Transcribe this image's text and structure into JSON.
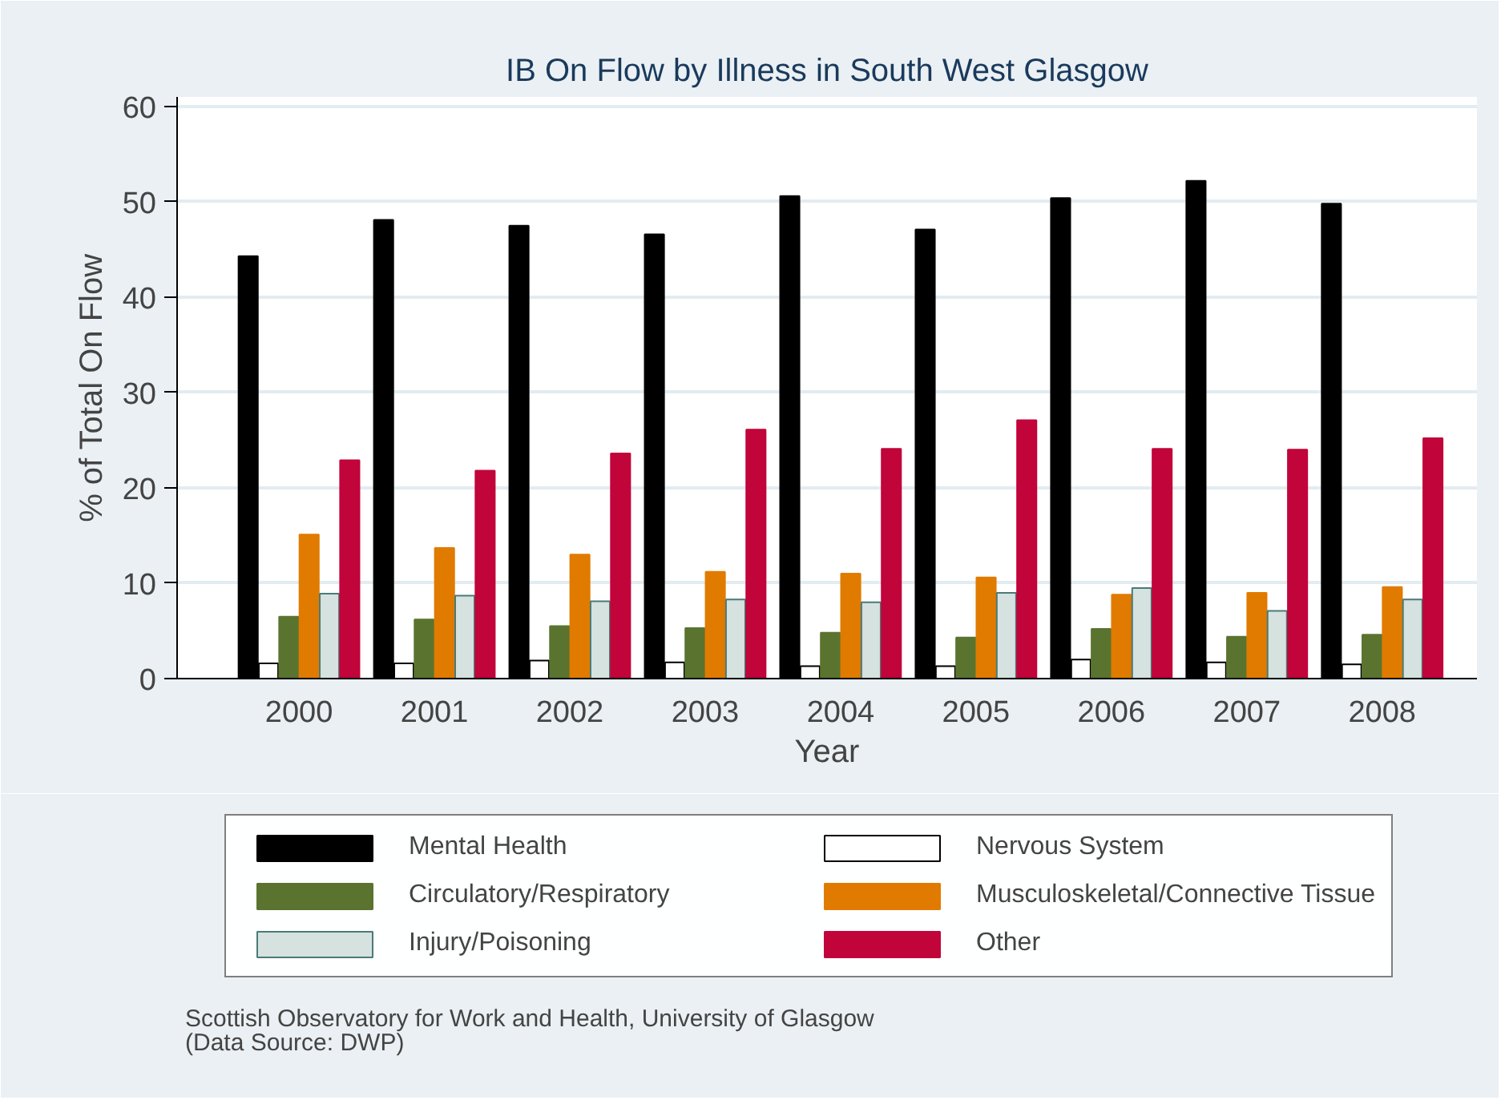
{
  "chart_data": {
    "type": "bar",
    "title": "IB On Flow by Illness in South West Glasgow",
    "xlabel": "Year",
    "ylabel": "% of Total On Flow",
    "categories": [
      "2000",
      "2001",
      "2002",
      "2003",
      "2004",
      "2005",
      "2006",
      "2007",
      "2008"
    ],
    "series": [
      {
        "name": "Mental Health",
        "color": "#000000",
        "values": [
          44.3,
          48.1,
          47.5,
          46.6,
          50.6,
          47.1,
          50.4,
          52.2,
          49.8
        ]
      },
      {
        "name": "Nervous System",
        "color": "#ffffff",
        "values": [
          1.6,
          1.6,
          1.9,
          1.7,
          1.3,
          1.3,
          2.0,
          1.7,
          1.5
        ]
      },
      {
        "name": "Circulatory/Respiratory",
        "color": "#5a7430",
        "values": [
          6.5,
          6.2,
          5.5,
          5.3,
          4.8,
          4.3,
          5.2,
          4.4,
          4.6
        ]
      },
      {
        "name": "Musculoskeletal/Connective Tissue",
        "color": "#e07b00",
        "values": [
          15.1,
          13.7,
          13.0,
          11.2,
          11.0,
          10.6,
          8.8,
          9.0,
          9.6
        ]
      },
      {
        "name": "Injury/Poisoning",
        "color": "#d5e2df",
        "values": [
          8.9,
          8.7,
          8.1,
          8.3,
          8.0,
          9.0,
          9.5,
          7.1,
          8.3
        ]
      },
      {
        "name": "Other",
        "color": "#c1043a",
        "values": [
          22.9,
          21.8,
          23.6,
          26.1,
          24.1,
          27.1,
          24.1,
          24.0,
          25.2
        ]
      }
    ],
    "ylim": [
      0,
      61
    ],
    "yticks": [
      0,
      10,
      20,
      30,
      40,
      50,
      60
    ],
    "grid": "y",
    "legend": "bottom",
    "annotations": [
      "Scottish Observatory for Work and Health, University of Glasgow",
      "(Data Source: DWP)"
    ]
  }
}
